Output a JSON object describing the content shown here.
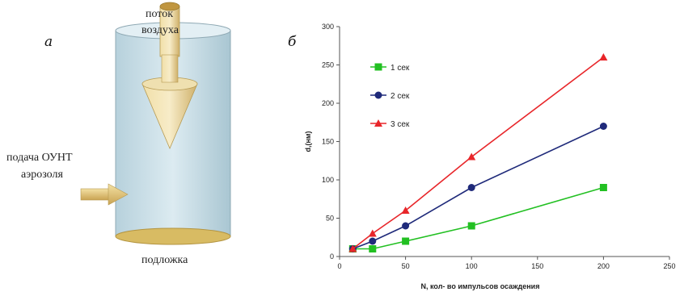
{
  "panels": {
    "left_letter": "а",
    "right_letter": "б"
  },
  "diagram": {
    "label_airflow_line1": "поток",
    "label_airflow_line2": "воздуха",
    "label_feed_line1": "подача ОУНТ",
    "label_feed_line2": "аэрозоля",
    "label_substrate": "подложка",
    "colors": {
      "cylinder": "#c6dde6",
      "arrow": "#d9b86a",
      "base": "#d8bb63"
    }
  },
  "chart_data": {
    "type": "line",
    "title": "",
    "xlabel": "N, кол- во импульсов осаждения",
    "ylabel": "d,(нм)",
    "xlim": [
      0,
      250
    ],
    "ylim": [
      0,
      300
    ],
    "xticks": [
      0,
      50,
      100,
      150,
      200,
      250
    ],
    "yticks": [
      0,
      50,
      100,
      150,
      200,
      250,
      300
    ],
    "grid": false,
    "legend_position": "top-left",
    "series": [
      {
        "name": "1 сек",
        "color": "#22c022",
        "marker": "square",
        "x": [
          10,
          25,
          50,
          100,
          200
        ],
        "y": [
          10,
          10,
          20,
          40,
          90
        ]
      },
      {
        "name": "2 сек",
        "color": "#1f2a7a",
        "marker": "circle",
        "x": [
          10,
          25,
          50,
          100,
          200
        ],
        "y": [
          10,
          20,
          40,
          90,
          170
        ]
      },
      {
        "name": "3 сек",
        "color": "#e8262a",
        "marker": "triangle",
        "x": [
          10,
          25,
          50,
          100,
          200
        ],
        "y": [
          10,
          30,
          60,
          130,
          260
        ]
      }
    ]
  }
}
